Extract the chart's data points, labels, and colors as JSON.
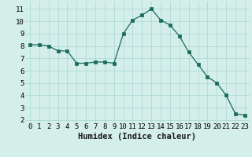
{
  "x": [
    0,
    1,
    2,
    3,
    4,
    5,
    6,
    7,
    8,
    9,
    10,
    11,
    12,
    13,
    14,
    15,
    16,
    17,
    18,
    19,
    20,
    21,
    22,
    23
  ],
  "y": [
    8.1,
    8.1,
    8.0,
    7.6,
    7.6,
    6.6,
    6.6,
    6.7,
    6.7,
    6.6,
    9.0,
    10.1,
    10.5,
    11.0,
    10.1,
    9.7,
    8.8,
    7.5,
    6.5,
    5.5,
    5.0,
    4.0,
    2.5,
    2.4
  ],
  "xlabel": "Humidex (Indice chaleur)",
  "xlim": [
    -0.5,
    23.5
  ],
  "ylim": [
    1.8,
    11.6
  ],
  "yticks": [
    2,
    3,
    4,
    5,
    6,
    7,
    8,
    9,
    10,
    11
  ],
  "xticks": [
    0,
    1,
    2,
    3,
    4,
    5,
    6,
    7,
    8,
    9,
    10,
    11,
    12,
    13,
    14,
    15,
    16,
    17,
    18,
    19,
    20,
    21,
    22,
    23
  ],
  "line_color": "#1a6b5a",
  "marker_color": "#1a6b5a",
  "bg_color": "#d4eeea",
  "grid_color": "#a8d8d2",
  "xlabel_fontsize": 7.5,
  "tick_fontsize": 6.5
}
